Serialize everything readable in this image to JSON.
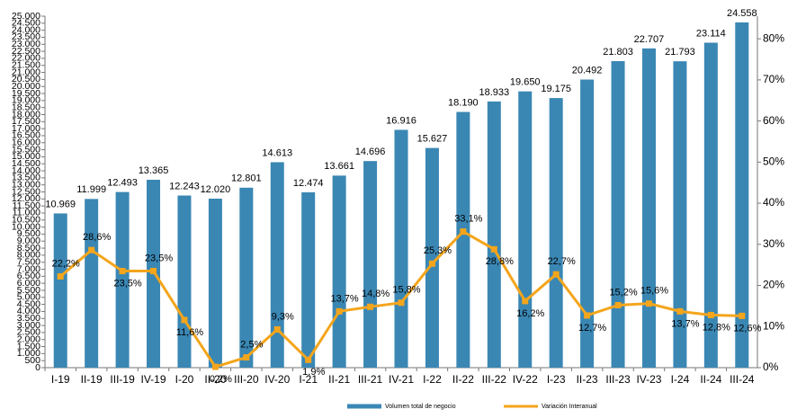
{
  "chart_data": {
    "type": "bar",
    "categories": [
      "I-19",
      "II-19",
      "III-19",
      "IV-19",
      "I-20",
      "II-20",
      "III-20",
      "IV-20",
      "I-21",
      "II-21",
      "III-21",
      "IV-21",
      "I-22",
      "II-22",
      "III-22",
      "IV-22",
      "I-23",
      "II-23",
      "III-23",
      "IV-23",
      "I-24",
      "II-24",
      "III-24"
    ],
    "series": [
      {
        "name": "Volumen total de negocio",
        "type": "bar",
        "color": "#3a87b4",
        "values": [
          10969,
          11999,
          12493,
          13365,
          12243,
          12020,
          12801,
          14613,
          12474,
          13661,
          14696,
          16916,
          15627,
          18190,
          18933,
          19650,
          19175,
          20492,
          21803,
          22707,
          21793,
          23114,
          24558
        ],
        "value_labels": [
          "10.969",
          "11.999",
          "12.493",
          "13.365",
          "12.243",
          "12.020",
          "12.801",
          "14.613",
          "12.474",
          "13.661",
          "14.696",
          "16.916",
          "15.627",
          "18.190",
          "18.933",
          "19.650",
          "19.175",
          "20.492",
          "21.803",
          "22.707",
          "21.793",
          "23.114",
          "24.558"
        ]
      },
      {
        "name": "Variación Interanual",
        "type": "line",
        "axis": "y2",
        "color": "#f4a51c",
        "values": [
          22.2,
          28.6,
          23.5,
          23.5,
          11.6,
          0.2,
          2.5,
          9.3,
          1.9,
          13.7,
          14.8,
          15.8,
          25.3,
          33.1,
          28.8,
          16.2,
          22.7,
          12.7,
          15.2,
          15.6,
          13.7,
          12.8,
          12.6
        ],
        "value_labels": [
          "22,2%",
          "28,6%",
          "23,5%",
          "23,5%",
          "11,6%",
          "0,2%",
          "2,5%",
          "9,3%",
          "1,9%",
          "13,7%",
          "14,8%",
          "15,8%",
          "25,3%",
          "33,1%",
          "28,8%",
          "16,2%",
          "22,7%",
          "12,7%",
          "15,2%",
          "15,6%",
          "13,7%",
          "12,8%",
          "12,6%"
        ]
      }
    ],
    "ylim": [
      0,
      25000
    ],
    "yticks": [
      0,
      500,
      {
        "value": 1000,
        "label": "1.000"
      },
      {
        "value": 1500,
        "label": "1.500"
      },
      {
        "value": 2000,
        "label": "2.000"
      },
      {
        "value": 2500,
        "label": "2.500"
      },
      {
        "value": 3000,
        "label": "3.000"
      },
      {
        "value": 3500,
        "label": "3.500"
      },
      {
        "value": 4000,
        "label": "4.000"
      },
      {
        "value": 4500,
        "label": "4.500"
      },
      {
        "value": 5000,
        "label": "5.000"
      },
      {
        "value": 5500,
        "label": "5.500"
      },
      {
        "value": 6000,
        "label": "6.000"
      },
      {
        "value": 6500,
        "label": "6.500"
      },
      {
        "value": 7000,
        "label": "7.000"
      },
      {
        "value": 7500,
        "label": "7.500"
      },
      {
        "value": 8000,
        "label": "8.000"
      },
      {
        "value": 8500,
        "label": "8.500"
      },
      {
        "value": 9000,
        "label": "9.000"
      },
      {
        "value": 9500,
        "label": "9.500"
      },
      {
        "value": 10000,
        "label": "10.000"
      },
      {
        "value": 10500,
        "label": "10.500"
      },
      {
        "value": 11000,
        "label": "11.000"
      },
      {
        "value": 11500,
        "label": "11.500"
      },
      {
        "value": 12000,
        "label": "12.000"
      },
      {
        "value": 12500,
        "label": "12.500"
      },
      {
        "value": 13000,
        "label": "13.000"
      },
      {
        "value": 13500,
        "label": "13.500"
      },
      {
        "value": 14000,
        "label": "14.000"
      },
      {
        "value": 14500,
        "label": "14.500"
      },
      {
        "value": 15000,
        "label": "15.000"
      },
      {
        "value": 15500,
        "label": "15.500"
      },
      {
        "value": 16000,
        "label": "16.000"
      },
      {
        "value": 16500,
        "label": "16.500"
      },
      {
        "value": 17000,
        "label": "17.000"
      },
      {
        "value": 17500,
        "label": "17.500"
      },
      {
        "value": 18000,
        "label": "18.000"
      },
      {
        "value": 18500,
        "label": "18.500"
      },
      {
        "value": 19000,
        "label": "19.000"
      },
      {
        "value": 19500,
        "label": "19.500"
      },
      {
        "value": 20000,
        "label": "20.000"
      },
      {
        "value": 20500,
        "label": "20.500"
      },
      {
        "value": 21000,
        "label": "21.000"
      },
      {
        "value": 21500,
        "label": "21.500"
      },
      {
        "value": 22000,
        "label": "22.000"
      },
      {
        "value": 22500,
        "label": "22.500"
      },
      {
        "value": 23000,
        "label": "23.000"
      },
      {
        "value": 23500,
        "label": "23.500"
      },
      {
        "value": 24000,
        "label": "24.000"
      },
      {
        "value": 24500,
        "label": "24.500"
      },
      {
        "value": 25000,
        "label": "25.000"
      }
    ],
    "y2lim": [
      0,
      85.5
    ],
    "y2ticks": [
      {
        "value": 0,
        "label": "0%"
      },
      {
        "value": 10,
        "label": "10%"
      },
      {
        "value": 20,
        "label": "20%"
      },
      {
        "value": 30,
        "label": "30%"
      },
      {
        "value": 40,
        "label": "40%"
      },
      {
        "value": 50,
        "label": "50%"
      },
      {
        "value": 60,
        "label": "60%"
      },
      {
        "value": 70,
        "label": "70%"
      },
      {
        "value": 80,
        "label": "80%"
      }
    ],
    "legend": "bottom"
  }
}
